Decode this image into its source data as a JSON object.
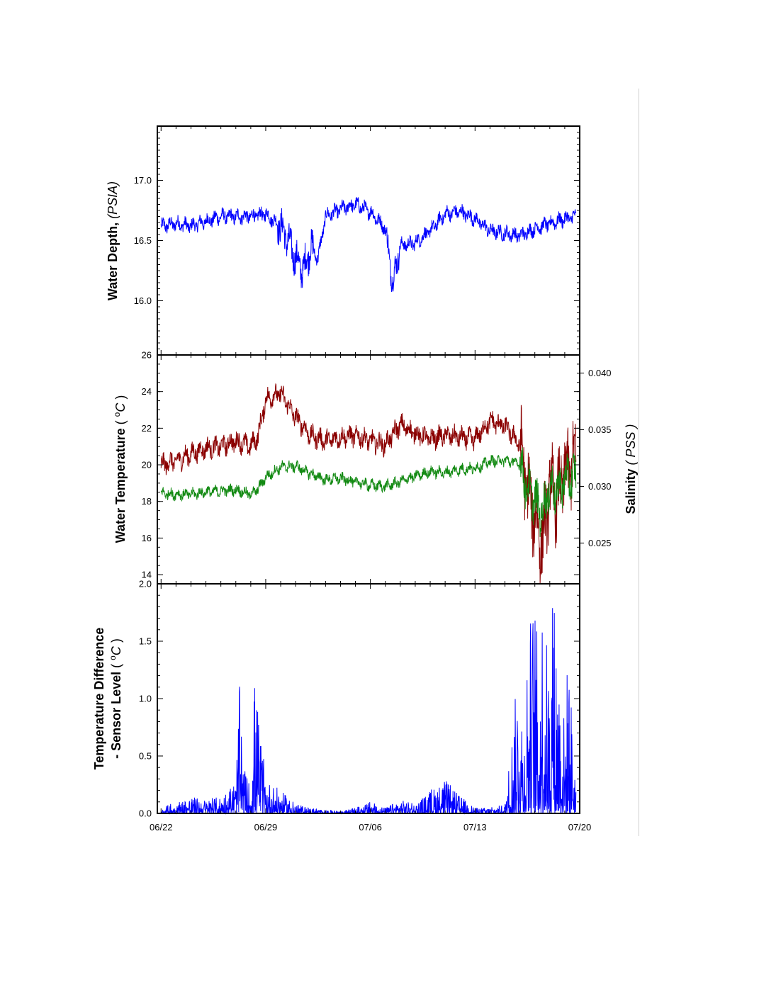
{
  "colors": {
    "depth": "#0000ff",
    "temperature": "#8b0000",
    "salinity": "#138a13",
    "temp_difference": "#0000ff",
    "frame": "#000000"
  },
  "x_axis": {
    "ticks": [
      "06/22",
      "06/29",
      "07/06",
      "07/13",
      "07/20"
    ]
  },
  "panels": {
    "depth": {
      "ylabel_main": "Water Depth, ",
      "ylabel_unit": "(PSIA)",
      "yticks": [
        "16.0",
        "16.5",
        "17.0"
      ]
    },
    "temperature": {
      "ylabel_main": "Water Temperature ",
      "ylabel_unit_open": "( ",
      "ylabel_unit_sup": "o",
      "ylabel_unit_c": "C",
      "ylabel_unit_close": " )",
      "yticks": [
        "14",
        "16",
        "18",
        "20",
        "22",
        "24",
        "26"
      ],
      "right_label_main": "Salinity ",
      "right_label_unit": "( PSS )",
      "right_ticks": [
        "0.025",
        "0.030",
        "0.035",
        "0.040"
      ]
    },
    "difference": {
      "ylabel_line1": "Temperature Difference",
      "ylabel_line2_main": "- Sensor Level ",
      "ylabel_unit_open": "( ",
      "ylabel_unit_sup": "o",
      "ylabel_unit_c": "C",
      "ylabel_unit_close": " )",
      "yticks": [
        "0.0",
        "0.5",
        "1.0",
        "1.5",
        "2.0"
      ]
    }
  },
  "chart_data": [
    {
      "type": "line",
      "title": "",
      "xlabel": "",
      "ylabel": "Water Depth, (PSIA)",
      "xlim": [
        "06/21 18:00",
        "07/20 00:00"
      ],
      "ylim": [
        15.55,
        17.45
      ],
      "grid": false,
      "series": [
        {
          "x": [
            "06/22",
            "06/23",
            "06/24",
            "06/25",
            "06/26",
            "06/27",
            "06/28",
            "06/29",
            "06/30",
            "06/30 12:00",
            "07/01",
            "07/01 12:00",
            "07/02",
            "07/02 12:00",
            "07/03",
            "07/04",
            "07/05",
            "07/06",
            "07/07",
            "07/07 12:00",
            "07/08",
            "07/09",
            "07/10",
            "07/11",
            "07/12",
            "07/13",
            "07/14",
            "07/15",
            "07/16",
            "07/17",
            "07/18",
            "07/19",
            "07/19 18:00"
          ],
          "y": [
            16.62,
            16.64,
            16.62,
            16.66,
            16.7,
            16.7,
            16.7,
            16.72,
            16.62,
            16.5,
            16.35,
            16.25,
            16.45,
            16.35,
            16.7,
            16.76,
            16.8,
            16.74,
            16.6,
            16.15,
            16.46,
            16.48,
            16.58,
            16.72,
            16.74,
            16.68,
            16.58,
            16.56,
            16.54,
            16.6,
            16.64,
            16.68,
            16.7
          ]
        }
      ]
    },
    {
      "type": "line",
      "title": "",
      "xlabel": "",
      "ylabel": "Water Temperature ( oC )",
      "y2label": "Salinity ( PSS )",
      "xlim": [
        "06/21 18:00",
        "07/20 00:00"
      ],
      "ylim": [
        13.5,
        26.0
      ],
      "y2lim": [
        0.0214,
        0.0416
      ],
      "grid": false,
      "series": [
        {
          "axis": "left",
          "x": [
            "06/22",
            "06/23",
            "06/24",
            "06/25",
            "06/26",
            "06/27",
            "06/28",
            "06/28 12:00",
            "06/29",
            "06/30",
            "07/01",
            "07/02",
            "07/03",
            "07/04",
            "07/05",
            "07/06",
            "07/07",
            "07/08",
            "07/09",
            "07/10",
            "07/11",
            "07/12",
            "07/13",
            "07/14",
            "07/15",
            "07/16",
            "07/16 12:00",
            "07/17",
            "07/17 12:00",
            "07/18",
            "07/18 12:00",
            "07/19",
            "07/19 18:00"
          ],
          "y": [
            20.0,
            20.2,
            20.6,
            20.9,
            21.0,
            21.3,
            21.0,
            21.6,
            23.6,
            23.9,
            22.6,
            21.6,
            21.3,
            21.5,
            21.6,
            21.3,
            21.1,
            22.2,
            21.7,
            21.4,
            21.6,
            21.5,
            21.4,
            22.4,
            22.1,
            21.1,
            18.6,
            17.2,
            15.6,
            18.9,
            18.1,
            19.6,
            20.2
          ]
        },
        {
          "axis": "right",
          "x": [
            "06/22",
            "06/23",
            "06/24",
            "06/25",
            "06/26",
            "06/27",
            "06/28",
            "06/28 12:00",
            "06/29",
            "06/30",
            "07/01",
            "07/02",
            "07/03",
            "07/04",
            "07/05",
            "07/06",
            "07/07",
            "07/08",
            "07/09",
            "07/10",
            "07/11",
            "07/12",
            "07/13",
            "07/14",
            "07/15",
            "07/16",
            "07/16 12:00",
            "07/17",
            "07/17 12:00",
            "07/18",
            "07/18 12:00",
            "07/19",
            "07/19 18:00"
          ],
          "y": [
            0.0294,
            0.0293,
            0.0293,
            0.0295,
            0.0296,
            0.0297,
            0.0293,
            0.0298,
            0.0308,
            0.0317,
            0.0318,
            0.0311,
            0.0306,
            0.0307,
            0.0304,
            0.0301,
            0.03,
            0.0304,
            0.0309,
            0.0313,
            0.0312,
            0.0315,
            0.0316,
            0.0322,
            0.0323,
            0.032,
            0.0298,
            0.0288,
            0.0276,
            0.03,
            0.0295,
            0.0307,
            0.0309
          ]
        }
      ]
    },
    {
      "type": "line",
      "title": "",
      "xlabel": "",
      "ylabel": "Temperature Difference - Sensor Level ( oC )",
      "xlim": [
        "06/21 18:00",
        "07/20 00:00"
      ],
      "ylim": [
        0.0,
        2.0
      ],
      "grid": false,
      "series": [
        {
          "x": [
            "06/22",
            "06/23",
            "06/24",
            "06/25",
            "06/26",
            "06/27",
            "06/27 06:00",
            "06/27 12:00",
            "06/28",
            "06/28 06:00",
            "06/29",
            "06/30",
            "07/01",
            "07/02",
            "07/03",
            "07/04",
            "07/05",
            "07/06",
            "07/07",
            "07/08",
            "07/09",
            "07/10",
            "07/11",
            "07/12",
            "07/13",
            "07/14",
            "07/15",
            "07/16",
            "07/16 06:00",
            "07/16 12:00",
            "07/17",
            "07/17 06:00",
            "07/17 12:00",
            "07/18",
            "07/18 06:00",
            "07/19",
            "07/19 06:00",
            "07/19 18:00"
          ],
          "y": [
            0.05,
            0.1,
            0.15,
            0.12,
            0.15,
            0.3,
            1.12,
            0.4,
            0.25,
            1.22,
            0.3,
            0.2,
            0.08,
            0.05,
            0.03,
            0.02,
            0.05,
            0.1,
            0.05,
            0.12,
            0.08,
            0.2,
            0.3,
            0.15,
            0.05,
            0.05,
            0.08,
            1.45,
            0.6,
            1.6,
            2.0,
            1.3,
            2.0,
            1.2,
            2.0,
            0.8,
            1.45,
            0.3
          ]
        }
      ]
    }
  ]
}
